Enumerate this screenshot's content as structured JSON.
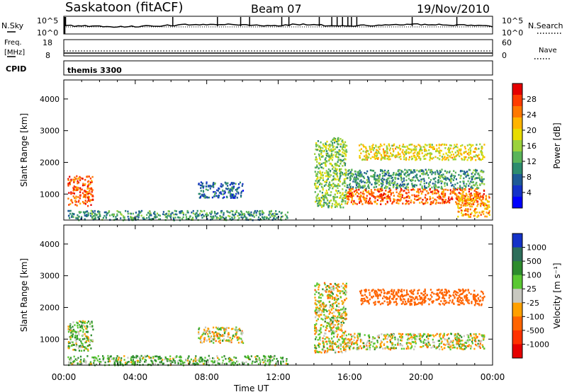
{
  "header": {
    "station": "Saskatoon (fitACF)",
    "beam": "Beam 07",
    "date": "19/Nov/2010"
  },
  "strips": {
    "nsky": {
      "label": "N.Sky",
      "ticks_left": [
        "10^5",
        "10^0"
      ]
    },
    "nsearch": {
      "label": "N.Search",
      "ticks_right": [
        "10^5",
        "10^0"
      ]
    },
    "freq": {
      "label_line1": "Freq.",
      "label_line2": "[MHz]",
      "ticks_left": [
        "18",
        "8"
      ]
    },
    "nave": {
      "label": "Nave",
      "ticks_right": [
        "60",
        "0"
      ]
    },
    "cpid": {
      "label": "CPID",
      "value": "themis 3300"
    }
  },
  "colorbars": {
    "power": {
      "title": "Power [dB]",
      "labels": [
        "28",
        "24",
        "20",
        "16",
        "12",
        "8",
        "4"
      ],
      "colors": [
        "#e60000",
        "#ff3c00",
        "#ff7800",
        "#ffb400",
        "#e8dc00",
        "#9bd23c",
        "#5ab45a",
        "#2d8c6e",
        "#1e5a96",
        "#1432c8",
        "#0000ff"
      ]
    },
    "velocity": {
      "title": "Velocity [m s⁻¹]",
      "labels": [
        "1000",
        "500",
        "100",
        "25",
        "-25",
        "-100",
        "-500",
        "-1000"
      ],
      "colors": [
        "#1432c8",
        "#2d6e5a",
        "#2d8c2d",
        "#5ac832",
        "#c8c8c0",
        "#ffa000",
        "#ff6400",
        "#ff3200",
        "#e60000"
      ]
    }
  },
  "chart_data": [
    {
      "type": "heatmap",
      "title": "",
      "xlabel": "",
      "ylabel": "Slant Range [km]",
      "xticks": [
        "00:00",
        "04:00",
        "08:00",
        "12:00",
        "16:00",
        "20:00",
        "00:00"
      ],
      "yticks": [
        "1000",
        "2000",
        "3000",
        "4000"
      ],
      "xlim": [
        0,
        24
      ],
      "ylim": [
        180,
        4600
      ],
      "colorbar": "Power [dB]",
      "regions": [
        {
          "t": [
            0.2,
            1.6
          ],
          "r": [
            650,
            1600
          ],
          "value_db": 26
        },
        {
          "t": [
            0.2,
            12.5
          ],
          "r": [
            200,
            500
          ],
          "value_db": 10
        },
        {
          "t": [
            7.5,
            10.0
          ],
          "r": [
            900,
            1400
          ],
          "value_db": 6
        },
        {
          "t": [
            14.0,
            15.8
          ],
          "r": [
            600,
            2800
          ],
          "value_db": 14
        },
        {
          "t": [
            15.8,
            23.5
          ],
          "r": [
            700,
            1200
          ],
          "value_db": 25
        },
        {
          "t": [
            15.8,
            23.5
          ],
          "r": [
            1200,
            1800
          ],
          "value_db": 10
        },
        {
          "t": [
            16.5,
            23.5
          ],
          "r": [
            2100,
            2600
          ],
          "value_db": 18
        },
        {
          "t": [
            22.0,
            23.8
          ],
          "r": [
            300,
            1000
          ],
          "value_db": 22
        }
      ]
    },
    {
      "type": "heatmap",
      "title": "",
      "xlabel": "Time UT",
      "ylabel": "Slant Range [km]",
      "xticks": [
        "00:00",
        "04:00",
        "08:00",
        "12:00",
        "16:00",
        "20:00",
        "00:00"
      ],
      "yticks": [
        "1000",
        "2000",
        "3000",
        "4000"
      ],
      "xlim": [
        0,
        24
      ],
      "ylim": [
        180,
        4600
      ],
      "colorbar": "Velocity [m s⁻¹]",
      "regions": [
        {
          "t": [
            0.2,
            1.6
          ],
          "r": [
            650,
            1600
          ],
          "value_ms": 60
        },
        {
          "t": [
            0.2,
            12.5
          ],
          "r": [
            200,
            500
          ],
          "value_ms": 80
        },
        {
          "t": [
            7.5,
            10.0
          ],
          "r": [
            900,
            1400
          ],
          "value_ms": 0
        },
        {
          "t": [
            14.0,
            15.8
          ],
          "r": [
            600,
            2800
          ],
          "value_ms": 0
        },
        {
          "t": [
            15.8,
            23.5
          ],
          "r": [
            700,
            1200
          ],
          "value_ms": 0
        },
        {
          "t": [
            16.5,
            23.5
          ],
          "r": [
            2100,
            2600
          ],
          "value_ms": -300
        }
      ]
    }
  ]
}
